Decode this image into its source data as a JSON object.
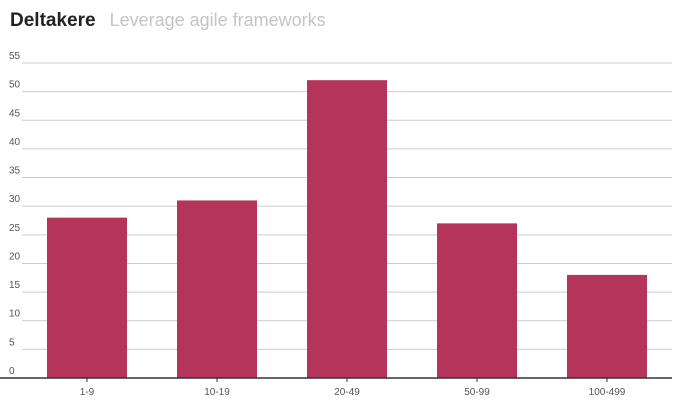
{
  "header": {
    "title": "Deltakere",
    "subtitle": "Leverage agile frameworks"
  },
  "colors": {
    "bar": "#b5345b",
    "grid": "#cccccc",
    "axis": "#333333",
    "tick_text": "#555555"
  },
  "chart_data": {
    "type": "bar",
    "title": "Deltakere",
    "subtitle": "Leverage agile frameworks",
    "xlabel": "",
    "ylabel": "",
    "categories": [
      "1-9",
      "10-19",
      "20-49",
      "50-99",
      "100-499"
    ],
    "values": [
      28,
      31,
      52,
      27,
      18
    ],
    "ylim": [
      0,
      55
    ],
    "yticks": [
      0,
      5,
      10,
      15,
      20,
      25,
      30,
      35,
      40,
      45,
      50,
      55
    ],
    "grid": true,
    "legend": "none"
  }
}
